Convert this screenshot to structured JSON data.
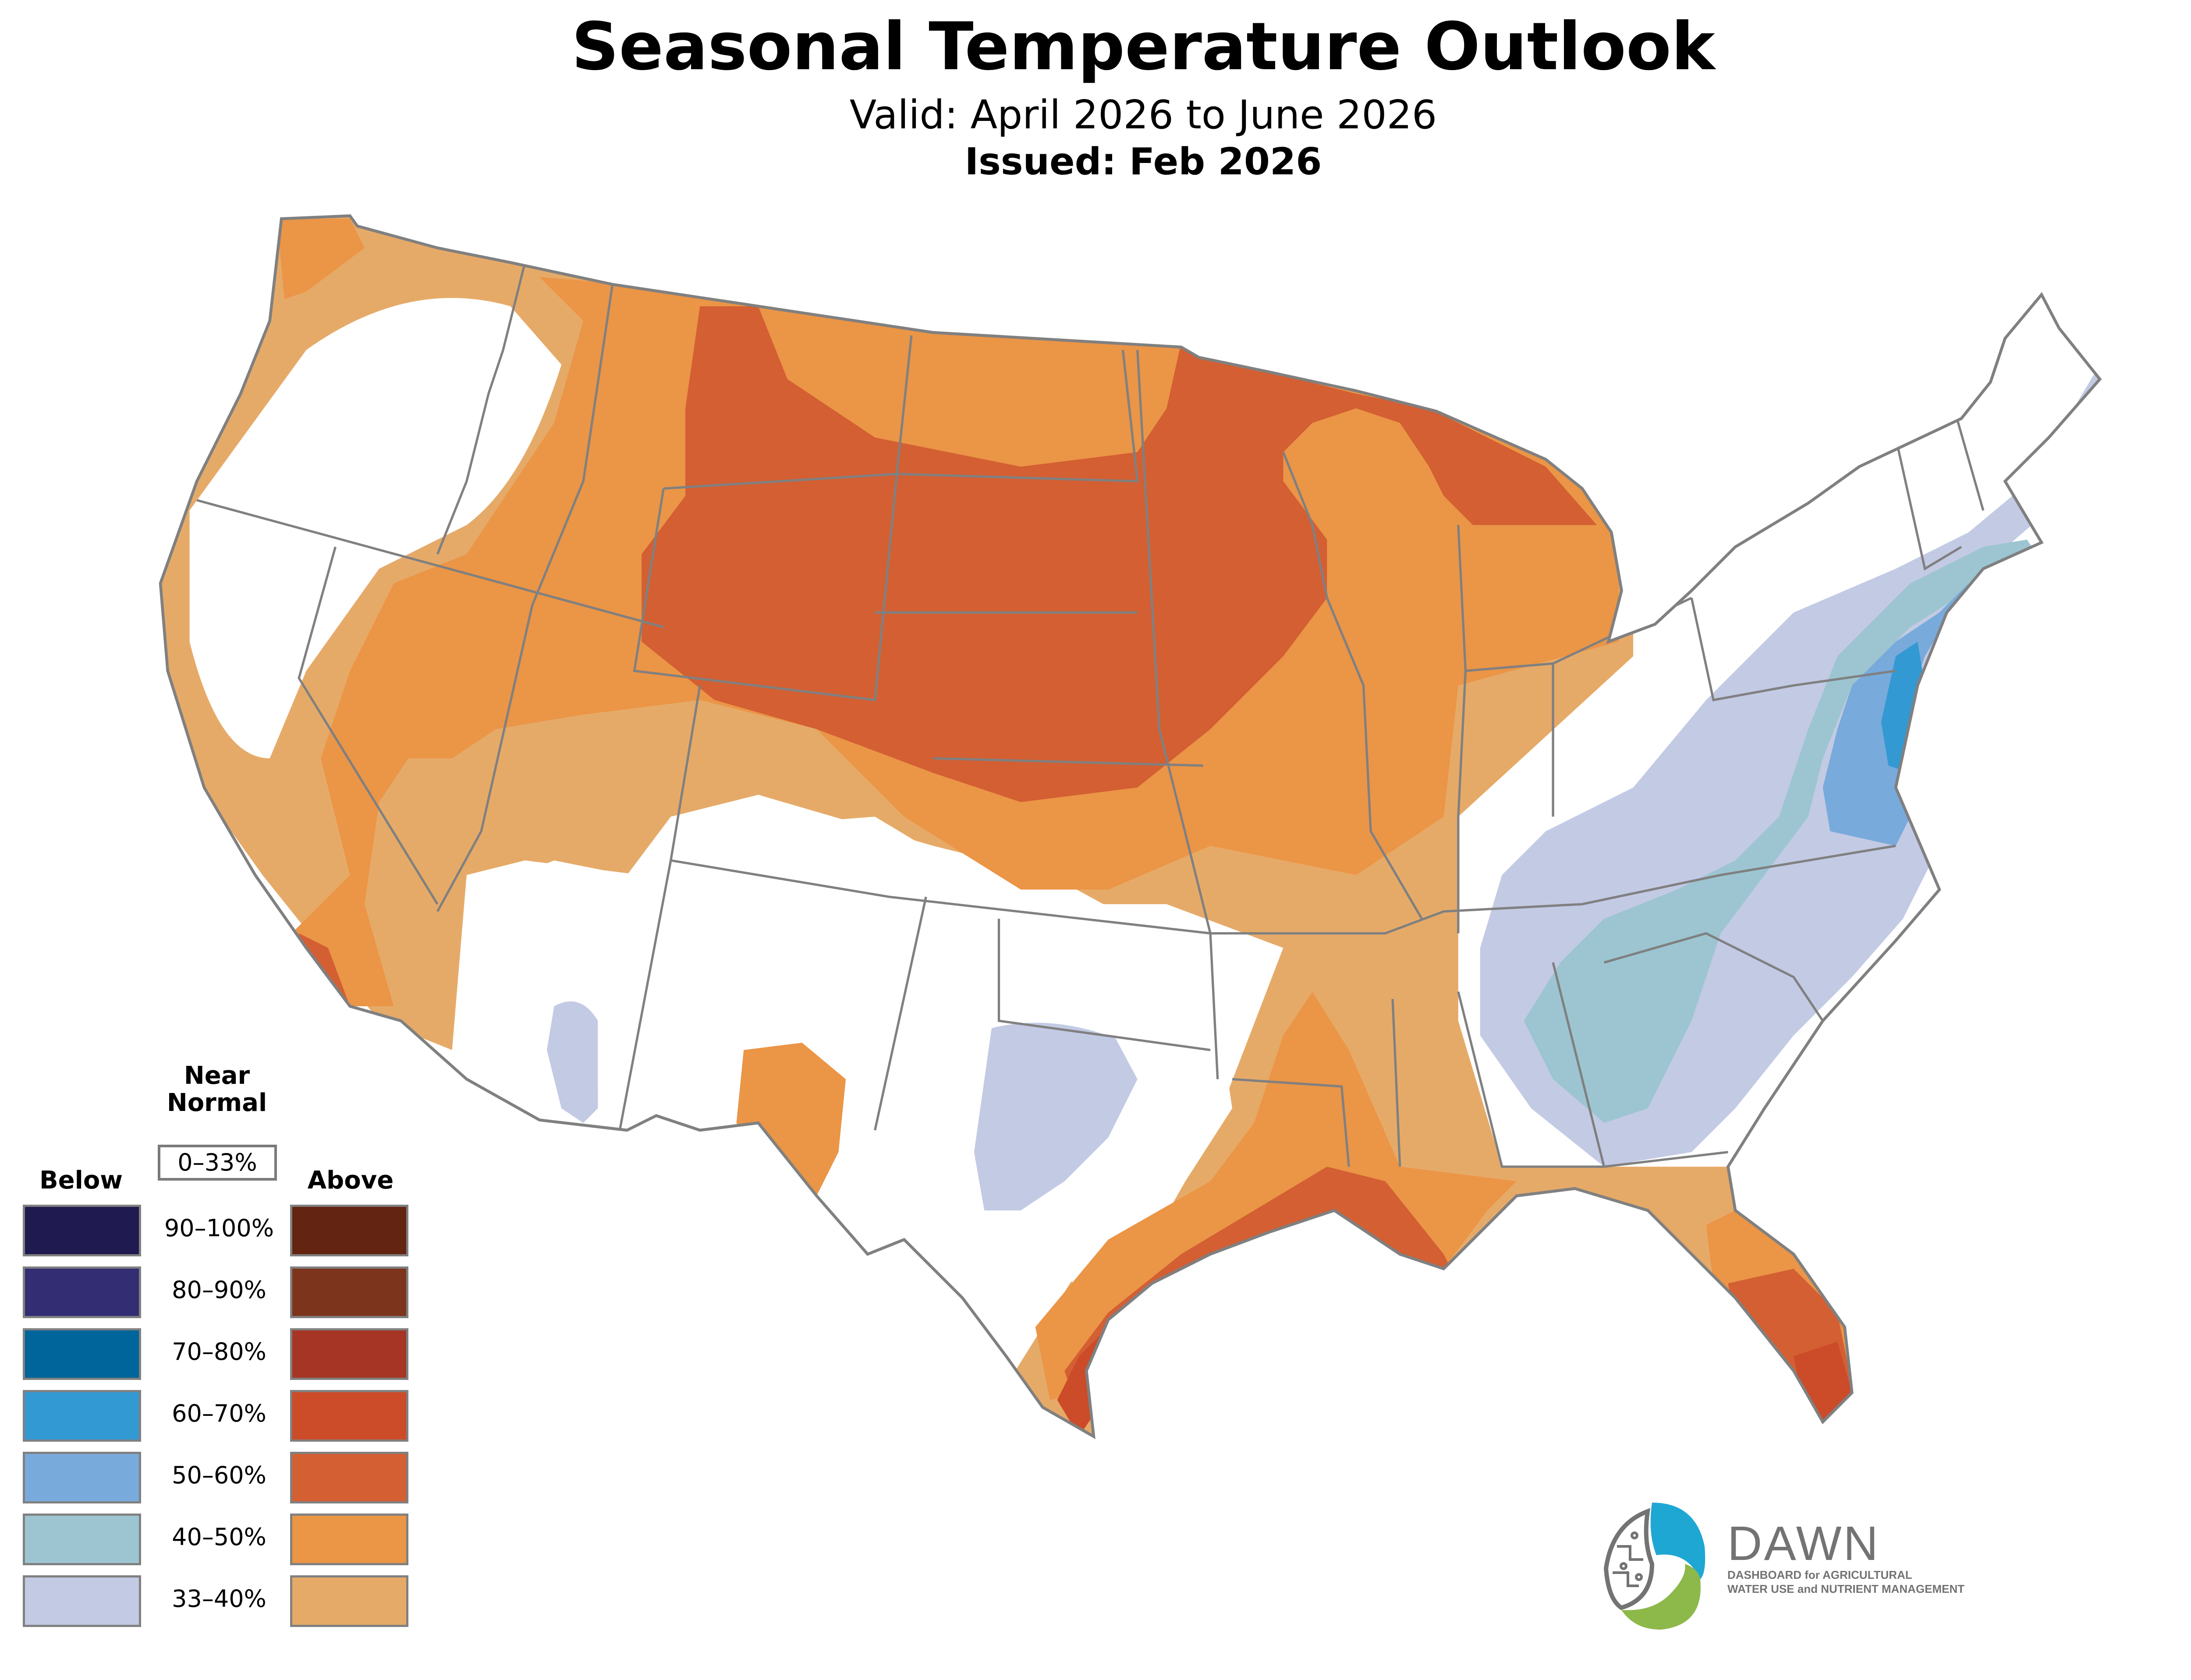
{
  "header": {
    "title": "Seasonal Temperature Outlook",
    "valid": "Valid: April 2026 to June 2026",
    "issued": "Issued: Feb 2026"
  },
  "legend": {
    "near_normal_line1": "Near",
    "near_normal_line2": "Normal",
    "near_normal_range": "0–33%",
    "below_label": "Below",
    "above_label": "Above",
    "rows": [
      {
        "range": "90–100%",
        "below_color": "#1f1a4f",
        "above_color": "#632411"
      },
      {
        "range": "80–90%",
        "below_color": "#332d73",
        "above_color": "#7d341d"
      },
      {
        "range": "70–80%",
        "below_color": "#00659b",
        "above_color": "#a63525"
      },
      {
        "range": "60–70%",
        "below_color": "#3399d3",
        "above_color": "#cc4b28"
      },
      {
        "range": "50–60%",
        "below_color": "#78aadb",
        "above_color": "#d35f33"
      },
      {
        "range": "40–50%",
        "below_color": "#9cc5d1",
        "above_color": "#eb9546"
      },
      {
        "range": "33–40%",
        "below_color": "#c3cae4",
        "above_color": "#e6aa68"
      }
    ]
  },
  "map": {
    "categories": [
      {
        "region": "Pacific Northwest coast",
        "category": "Above",
        "range": "40–50%"
      },
      {
        "region": "Northern Plains / Upper Midwest",
        "category": "Above",
        "range": "50–60%"
      },
      {
        "region": "Gulf Coast / South Texas",
        "category": "Above",
        "range": "60–70%"
      },
      {
        "region": "South Florida",
        "category": "Above",
        "range": "60–70%"
      },
      {
        "region": "Mid-Atlantic coast",
        "category": "Below",
        "range": "60–70%"
      },
      {
        "region": "Appalachians / Southeast interior",
        "category": "Below",
        "range": "40–50%"
      },
      {
        "region": "Great Basin / Southwest / Texas",
        "category": "Near Normal",
        "range": "0–33%"
      }
    ]
  },
  "logo": {
    "name": "DAWN",
    "line1": "DASHBOARD for AGRICULTURAL",
    "line2": "WATER USE and NUTRIENT MANAGEMENT",
    "blue": "#1fa7d4",
    "green": "#8db84a",
    "gray": "#737373"
  }
}
